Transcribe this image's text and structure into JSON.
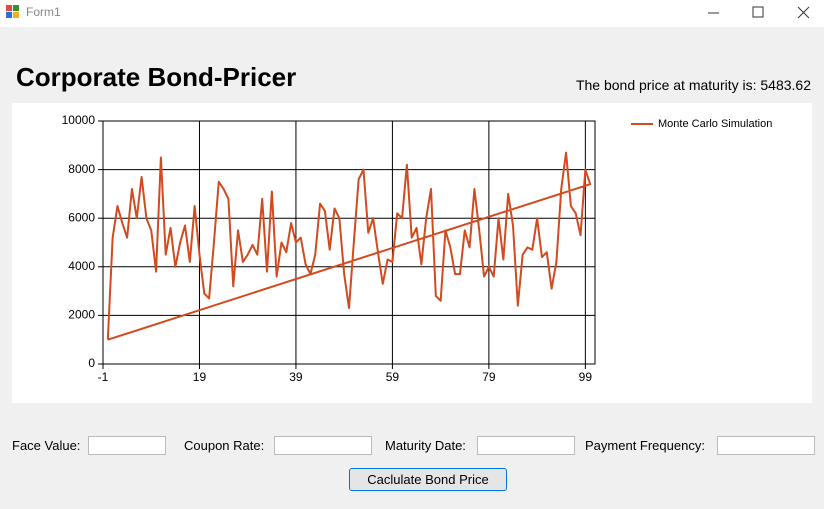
{
  "window": {
    "title": "Form1"
  },
  "header": {
    "title": "Corporate Bond-Pricer",
    "result": "The bond price at maturity is: 5483.62"
  },
  "chart_data": {
    "type": "line",
    "x": [
      0,
      1,
      2,
      3,
      4,
      5,
      6,
      7,
      8,
      9,
      10,
      11,
      12,
      13,
      14,
      15,
      16,
      17,
      18,
      19,
      20,
      21,
      22,
      23,
      24,
      25,
      26,
      27,
      28,
      29,
      30,
      31,
      32,
      33,
      34,
      35,
      36,
      37,
      38,
      39,
      40,
      41,
      42,
      43,
      44,
      45,
      46,
      47,
      48,
      49,
      50,
      51,
      52,
      53,
      54,
      55,
      56,
      57,
      58,
      59,
      60,
      61,
      62,
      63,
      64,
      65,
      66,
      67,
      68,
      69,
      70,
      71,
      72,
      73,
      74,
      75,
      76,
      77,
      78,
      79,
      80,
      81,
      82,
      83,
      84,
      85,
      86,
      87,
      88,
      89,
      90,
      91,
      92,
      93,
      94,
      95,
      96,
      97,
      98,
      99,
      100,
      0
    ],
    "series": [
      {
        "name": "Monte Carlo Simulation",
        "color": "#d24a1e",
        "values": [
          1000,
          5200,
          6500,
          5800,
          5200,
          7200,
          6000,
          7700,
          6000,
          5500,
          3800,
          8500,
          4500,
          5600,
          4000,
          5000,
          5700,
          4200,
          6500,
          4500,
          2900,
          2700,
          5000,
          7500,
          7200,
          6800,
          3200,
          5500,
          4200,
          4500,
          4900,
          4500,
          6800,
          3800,
          7100,
          3600,
          5000,
          4600,
          5800,
          5000,
          5200,
          4100,
          3700,
          4500,
          6600,
          6300,
          4700,
          6400,
          6000,
          3700,
          2300,
          5000,
          7600,
          8000,
          5400,
          6000,
          4600,
          3300,
          4300,
          4200,
          6200,
          6000,
          8200,
          5200,
          5600,
          4100,
          6000,
          7200,
          2800,
          2600,
          5500,
          4800,
          3700,
          3700,
          5500,
          4800,
          7200,
          5500,
          3600,
          4000,
          3600,
          6000,
          4300,
          7000,
          5700,
          2400,
          4500,
          4800,
          4700,
          6000,
          4400,
          4600,
          3100,
          4200,
          7200,
          8700,
          6500,
          6200,
          5300,
          8000,
          7400,
          1000
        ]
      }
    ],
    "xlim": [
      -1,
      101
    ],
    "xticks": [
      -1,
      19,
      39,
      59,
      79,
      99
    ],
    "ylim": [
      0,
      10000
    ],
    "yticks": [
      0,
      2000,
      4000,
      6000,
      8000,
      10000
    ],
    "grid": true,
    "legend": "right"
  },
  "form": {
    "fields": [
      {
        "label": "Face Value:"
      },
      {
        "label": "Coupon Rate:"
      },
      {
        "label": "Maturity Date:"
      },
      {
        "label": "Payment Frequency:"
      }
    ],
    "button": "Caclulate Bond Price"
  }
}
